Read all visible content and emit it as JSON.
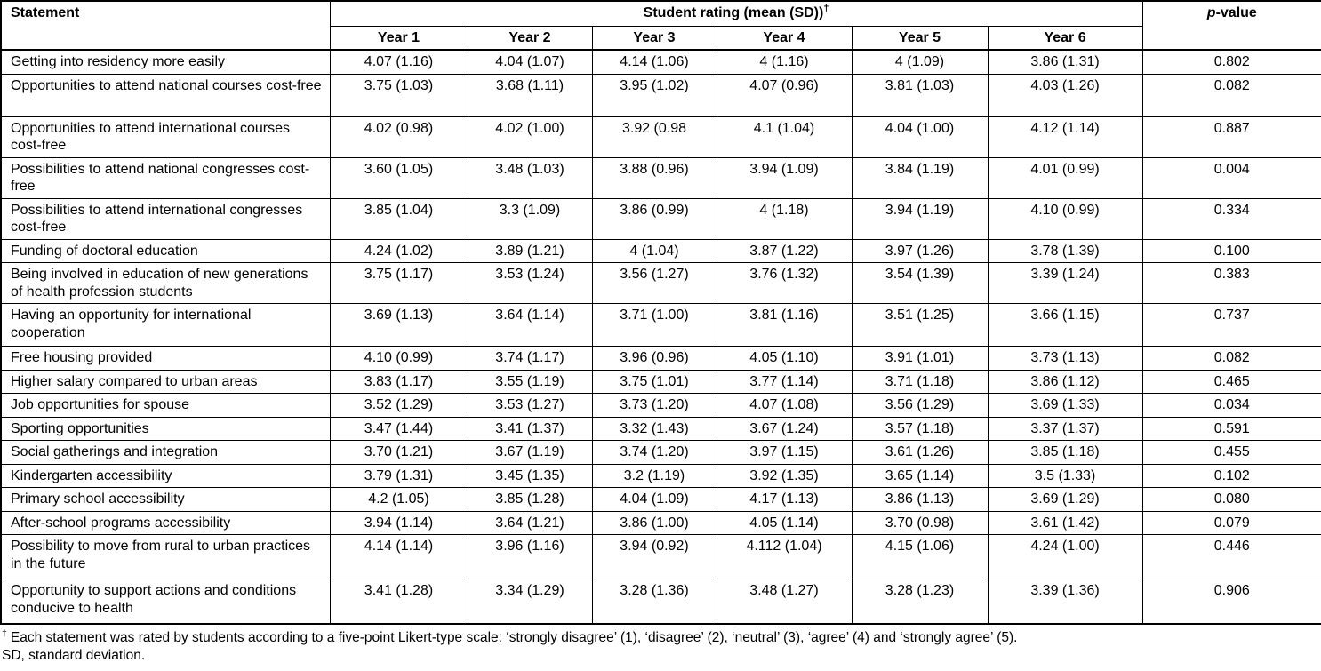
{
  "table": {
    "statement_header": "Statement",
    "group_header": "Student rating (mean (SD))",
    "group_header_marker": "†",
    "pvalue_header": {
      "italic": "p",
      "rest": "-value"
    },
    "year_headers": [
      "Year 1",
      "Year 2",
      "Year 3",
      "Year 4",
      "Year 5",
      "Year 6"
    ],
    "rows": [
      {
        "statement": "Getting into residency more easily",
        "values": [
          "4.07 (1.16)",
          "4.04 (1.07)",
          "4.14 (1.06)",
          "4 (1.16)",
          "4 (1.09)",
          "3.86 (1.31)"
        ],
        "p": "0.802"
      },
      {
        "statement": "Opportunities to attend national courses cost-free",
        "values": [
          "3.75 (1.03)",
          "3.68 (1.11)",
          "3.95 (1.02)",
          "4.07 (0.96)",
          "3.81 (1.03)",
          "4.03 (1.26)"
        ],
        "p": "0.082"
      },
      {
        "statement": "Opportunities to attend international courses cost-free",
        "values": [
          "4.02 (0.98)",
          "4.02 (1.00)",
          "3.92 (0.98",
          "4.1 (1.04)",
          "4.04 (1.00)",
          "4.12 (1.14)"
        ],
        "p": "0.887"
      },
      {
        "statement": "Possibilities to attend national congresses cost-free",
        "values": [
          "3.60 (1.05)",
          "3.48 (1.03)",
          "3.88 (0.96)",
          "3.94 (1.09)",
          "3.84 (1.19)",
          "4.01 (0.99)"
        ],
        "p": "0.004"
      },
      {
        "statement": "Possibilities to attend international congresses cost-free",
        "values": [
          "3.85 (1.04)",
          "3.3 (1.09)",
          "3.86 (0.99)",
          "4 (1.18)",
          "3.94 (1.19)",
          "4.10 (0.99)"
        ],
        "p": "0.334"
      },
      {
        "statement": "Funding of doctoral education",
        "values": [
          "4.24 (1.02)",
          "3.89 (1.21)",
          "4 (1.04)",
          "3.87 (1.22)",
          "3.97 (1.26)",
          "3.78 (1.39)"
        ],
        "p": "0.100"
      },
      {
        "statement": "Being involved in education of new generations of health profession students",
        "values": [
          "3.75 (1.17)",
          "3.53 (1.24)",
          "3.56 (1.27)",
          "3.76 (1.32)",
          "3.54 (1.39)",
          "3.39 (1.24)"
        ],
        "p": "0.383"
      },
      {
        "statement": "Having an opportunity for international cooperation",
        "values": [
          "3.69 (1.13)",
          "3.64 (1.14)",
          "3.71 (1.00)",
          "3.81 (1.16)",
          "3.51 (1.25)",
          "3.66 (1.15)"
        ],
        "p": "0.737"
      },
      {
        "statement": "Free housing provided",
        "values": [
          "4.10 (0.99)",
          "3.74 (1.17)",
          "3.96 (0.96)",
          "4.05 (1.10)",
          "3.91 (1.01)",
          "3.73 (1.13)"
        ],
        "p": "0.082"
      },
      {
        "statement": "Higher salary compared to urban areas",
        "values": [
          "3.83 (1.17)",
          "3.55 (1.19)",
          "3.75 (1.01)",
          "3.77 (1.14)",
          "3.71 (1.18)",
          "3.86 (1.12)"
        ],
        "p": "0.465"
      },
      {
        "statement": "Job opportunities for spouse",
        "values": [
          "3.52 (1.29)",
          "3.53 (1.27)",
          "3.73 (1.20)",
          "4.07 (1.08)",
          "3.56 (1.29)",
          "3.69 (1.33)"
        ],
        "p": "0.034"
      },
      {
        "statement": "Sporting opportunities",
        "values": [
          "3.47 (1.44)",
          "3.41 (1.37)",
          "3.32 (1.43)",
          "3.67 (1.24)",
          "3.57 (1.18)",
          "3.37 (1.37)"
        ],
        "p": "0.591"
      },
      {
        "statement": "Social gatherings and integration",
        "values": [
          "3.70 (1.21)",
          "3.67 (1.19)",
          "3.74 (1.20)",
          "3.97 (1.15)",
          "3.61 (1.26)",
          "3.85 (1.18)"
        ],
        "p": "0.455"
      },
      {
        "statement": "Kindergarten accessibility",
        "values": [
          "3.79 (1.31)",
          "3.45 (1.35)",
          "3.2 (1.19)",
          "3.92 (1.35)",
          "3.65 (1.14)",
          "3.5 (1.33)"
        ],
        "p": "0.102"
      },
      {
        "statement": "Primary school accessibility",
        "values": [
          "4.2 (1.05)",
          "3.85 (1.28)",
          "4.04 (1.09)",
          "4.17 (1.13)",
          "3.86 (1.13)",
          "3.69 (1.29)"
        ],
        "p": "0.080"
      },
      {
        "statement": "After-school programs accessibility",
        "values": [
          "3.94 (1.14)",
          "3.64 (1.21)",
          "3.86 (1.00)",
          "4.05 (1.14)",
          "3.70 (0.98)",
          "3.61 (1.42)"
        ],
        "p": "0.079"
      },
      {
        "statement": "Possibility to move from rural to urban practices in the future",
        "values": [
          "4.14 (1.14)",
          "3.96 (1.16)",
          "3.94 (0.92)",
          "4.112 (1.04)",
          "4.15 (1.06)",
          "4.24 (1.00)"
        ],
        "p": "0.446"
      },
      {
        "statement": "Opportunity to support actions and conditions conducive to health",
        "values": [
          "3.41 (1.28)",
          "3.34 (1.29)",
          "3.28 (1.36)",
          "3.48 (1.27)",
          "3.28 (1.23)",
          "3.39 (1.36)"
        ],
        "p": "0.906"
      }
    ]
  },
  "footnotes": {
    "likert_marker": "†",
    "likert_text": "Each statement was rated by students according to a five-point Likert-type scale: ‘strongly disagree’ (1), ‘disagree’ (2), ‘neutral’ (3), ‘agree’ (4) and ‘strongly agree’ (5).",
    "sd_text": "SD, standard deviation."
  }
}
